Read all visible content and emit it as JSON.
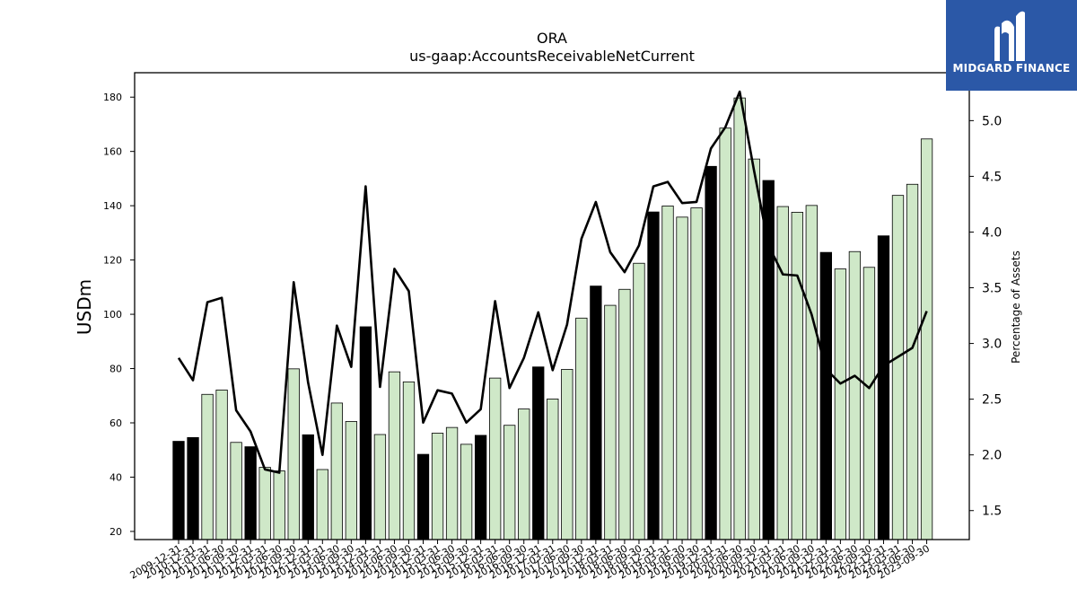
{
  "brand": {
    "name": "MIDGARD FINANCE",
    "bg_color": "#2b58a7",
    "icon": "midgard-logo-icon"
  },
  "chart_data": {
    "type": "bar",
    "title": "ORA",
    "subtitle": "us-gaap:AccountsReceivableNetCurrent",
    "ylabel": "USDm",
    "y2label": "Percentage of Assets",
    "ylim": [
      17,
      189
    ],
    "y2lim": [
      1.24,
      5.43
    ],
    "yticks": [
      20,
      40,
      60,
      80,
      100,
      120,
      140,
      160,
      180
    ],
    "y2ticks": [
      "1.5",
      "2.0",
      "2.5",
      "3.0",
      "3.5",
      "4.0",
      "4.5",
      "5.0"
    ],
    "grid": false,
    "colors": {
      "annual_bar": "#000000",
      "quarter_bar": "#cfe8c8",
      "bar_edge": "#000000",
      "line": "#000000"
    },
    "categories": [
      "2009-12-31",
      "2010-12-31",
      "2011-03-31",
      "2011-06-30",
      "2011-09-30",
      "2011-12-31",
      "2012-03-31",
      "2012-06-30",
      "2012-09-30",
      "2012-12-31",
      "2013-03-31",
      "2013-06-30",
      "2013-09-30",
      "2013-12-31",
      "2014-03-31",
      "2014-06-30",
      "2014-09-30",
      "2014-12-31",
      "2015-03-31",
      "2015-06-30",
      "2015-09-30",
      "2015-12-31",
      "2016-03-31",
      "2016-06-30",
      "2016-09-30",
      "2016-12-31",
      "2017-03-31",
      "2017-06-30",
      "2017-09-30",
      "2017-12-31",
      "2018-03-31",
      "2018-06-30",
      "2018-09-30",
      "2018-12-31",
      "2019-03-31",
      "2019-06-30",
      "2019-09-30",
      "2019-12-31",
      "2020-03-31",
      "2020-06-30",
      "2020-09-30",
      "2020-12-31",
      "2021-03-31",
      "2021-06-30",
      "2021-09-30",
      "2021-12-31",
      "2022-03-31",
      "2022-06-30",
      "2022-09-30",
      "2022-12-31",
      "2023-03-31",
      "2023-06-30",
      "2023-09-30"
    ],
    "xtick_labels": [
      "2009-12-31",
      "2010-12-31",
      "2011-03-31",
      "2011-06-30",
      "2011-09-30",
      "2011-12-31",
      "2012-03-31",
      "2012-06-30",
      "2012-09-30",
      "2012-12-31",
      "2013-03-31",
      "2013-06-30",
      "2013-09-30",
      "2013-12-31",
      "2014-03-31",
      "2014-06-30",
      "2014-09-30",
      "2014-12-31",
      "2015-03-31",
      "2015-06-30",
      "2015-09-30",
      "2015-12-31",
      "2016-03-31",
      "2016-06-30",
      "2016-09-30",
      "2016-12-31",
      "2017-03-31",
      "2017-06-30",
      "2017-09-30",
      "2017-12-31",
      "2018-03-31",
      "2018-06-30",
      "2018-09-30",
      "2018-12-31",
      "2019-03-31",
      "2019-06-30",
      "2019-09-30",
      "2019-12-31",
      "2020-03-31",
      "2020-06-30",
      "2020-09-30",
      "2020-12-31",
      "2021-03-31",
      "2021-06-30",
      "2021-09-30",
      "2021-12-31",
      "2022-03-31",
      "2022-06-30",
      "2022-09-30",
      "2022-12-31",
      "2023-03-31",
      "2023-06-30",
      "2023-09-30"
    ],
    "annual": [
      1,
      1,
      0,
      0,
      0,
      1,
      0,
      0,
      0,
      1,
      0,
      0,
      0,
      1,
      0,
      0,
      0,
      1,
      0,
      0,
      0,
      1,
      0,
      0,
      0,
      1,
      0,
      0,
      0,
      1,
      0,
      0,
      0,
      1,
      0,
      0,
      0,
      1,
      0,
      0,
      0,
      1,
      0,
      0,
      0,
      1,
      0,
      0,
      0,
      1,
      0,
      0,
      0
    ],
    "series": [
      {
        "name": "USDm",
        "type": "bar",
        "values": [
          53.2,
          54.6,
          70.5,
          72.1,
          52.8,
          51.2,
          43.6,
          42.3,
          79.9,
          55.6,
          42.8,
          67.3,
          60.5,
          95.4,
          55.7,
          78.8,
          75.1,
          48.4,
          56.2,
          58.3,
          52.1,
          55.4,
          76.5,
          59.1,
          65.1,
          80.6,
          68.8,
          79.7,
          98.6,
          110.4,
          103.3,
          109.2,
          118.8,
          137.7,
          139.9,
          135.8,
          139.2,
          154.5,
          168.6,
          179.7,
          157.2,
          149.3,
          139.7,
          137.6,
          140.1,
          122.8,
          116.7,
          123.1,
          117.3,
          128.9,
          143.8,
          147.9,
          164.6
        ]
      },
      {
        "name": "Percentage of Assets",
        "type": "line",
        "axis": "right",
        "values": [
          2.87,
          2.67,
          3.37,
          3.41,
          2.4,
          2.21,
          1.87,
          1.84,
          3.55,
          2.65,
          2.0,
          3.16,
          2.79,
          4.41,
          2.61,
          3.67,
          3.47,
          2.29,
          2.58,
          2.55,
          2.29,
          2.41,
          3.38,
          2.6,
          2.87,
          3.28,
          2.76,
          3.17,
          3.94,
          4.27,
          3.82,
          3.64,
          3.88,
          4.41,
          4.45,
          4.26,
          4.27,
          4.75,
          4.94,
          5.26,
          4.55,
          3.88,
          3.62,
          3.61,
          3.26,
          2.77,
          2.64,
          2.71,
          2.6,
          2.8,
          2.88,
          2.96,
          3.29
        ]
      }
    ]
  }
}
